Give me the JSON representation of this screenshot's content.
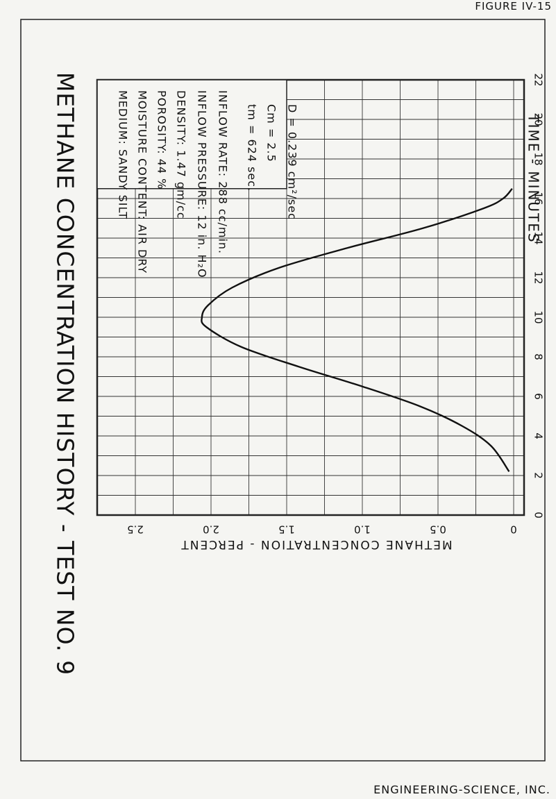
{
  "figure_label": "FIGURE IV-15",
  "company": "ENGINEERING-SCIENCE, INC.",
  "chart_data": {
    "type": "line",
    "title": "METHANE CONCENTRATION HISTORY - TEST NO. 9",
    "xlabel": "TIME - MINUTES",
    "ylabel": "METHANE CONCENTRATION - PERCENT",
    "xlim": [
      0,
      22
    ],
    "ylim": [
      0,
      2.5
    ],
    "x_ticks": [
      "0",
      "2",
      "4",
      "6",
      "8",
      "10",
      "12",
      "14",
      "16",
      "18",
      "20",
      "22"
    ],
    "y_ticks": [
      "0",
      "0.5",
      "1.0",
      "1.5",
      "2.0",
      "2.5"
    ],
    "grid": true,
    "series": [
      {
        "x": [
          2.2,
          3.5,
          4.5,
          5.5,
          6.5,
          7.5,
          8.5,
          9.5,
          10.0,
          10.6,
          11.5,
          12.5,
          13.5,
          14.5,
          15.5,
          16.0,
          16.5
        ],
        "y": [
          0.03,
          0.15,
          0.34,
          0.62,
          1.0,
          1.42,
          1.8,
          2.03,
          2.06,
          2.02,
          1.86,
          1.55,
          1.1,
          0.6,
          0.2,
          0.07,
          0.01
        ]
      }
    ],
    "annotations": {
      "params": [
        "D = 0.239 cm²/sec",
        "Cm = 2.5",
        "tm = 624 sec.",
        "INFLOW RATE: 288 cc/min.",
        "INFLOW PRESSURE: 12 in. H₂O",
        "DENSITY: 1.47 gm/cc",
        "POROSITY: 44 %",
        "MOISTURE CONTENT: AIR DRY",
        "MEDIUM: SANDY SILT"
      ]
    }
  }
}
